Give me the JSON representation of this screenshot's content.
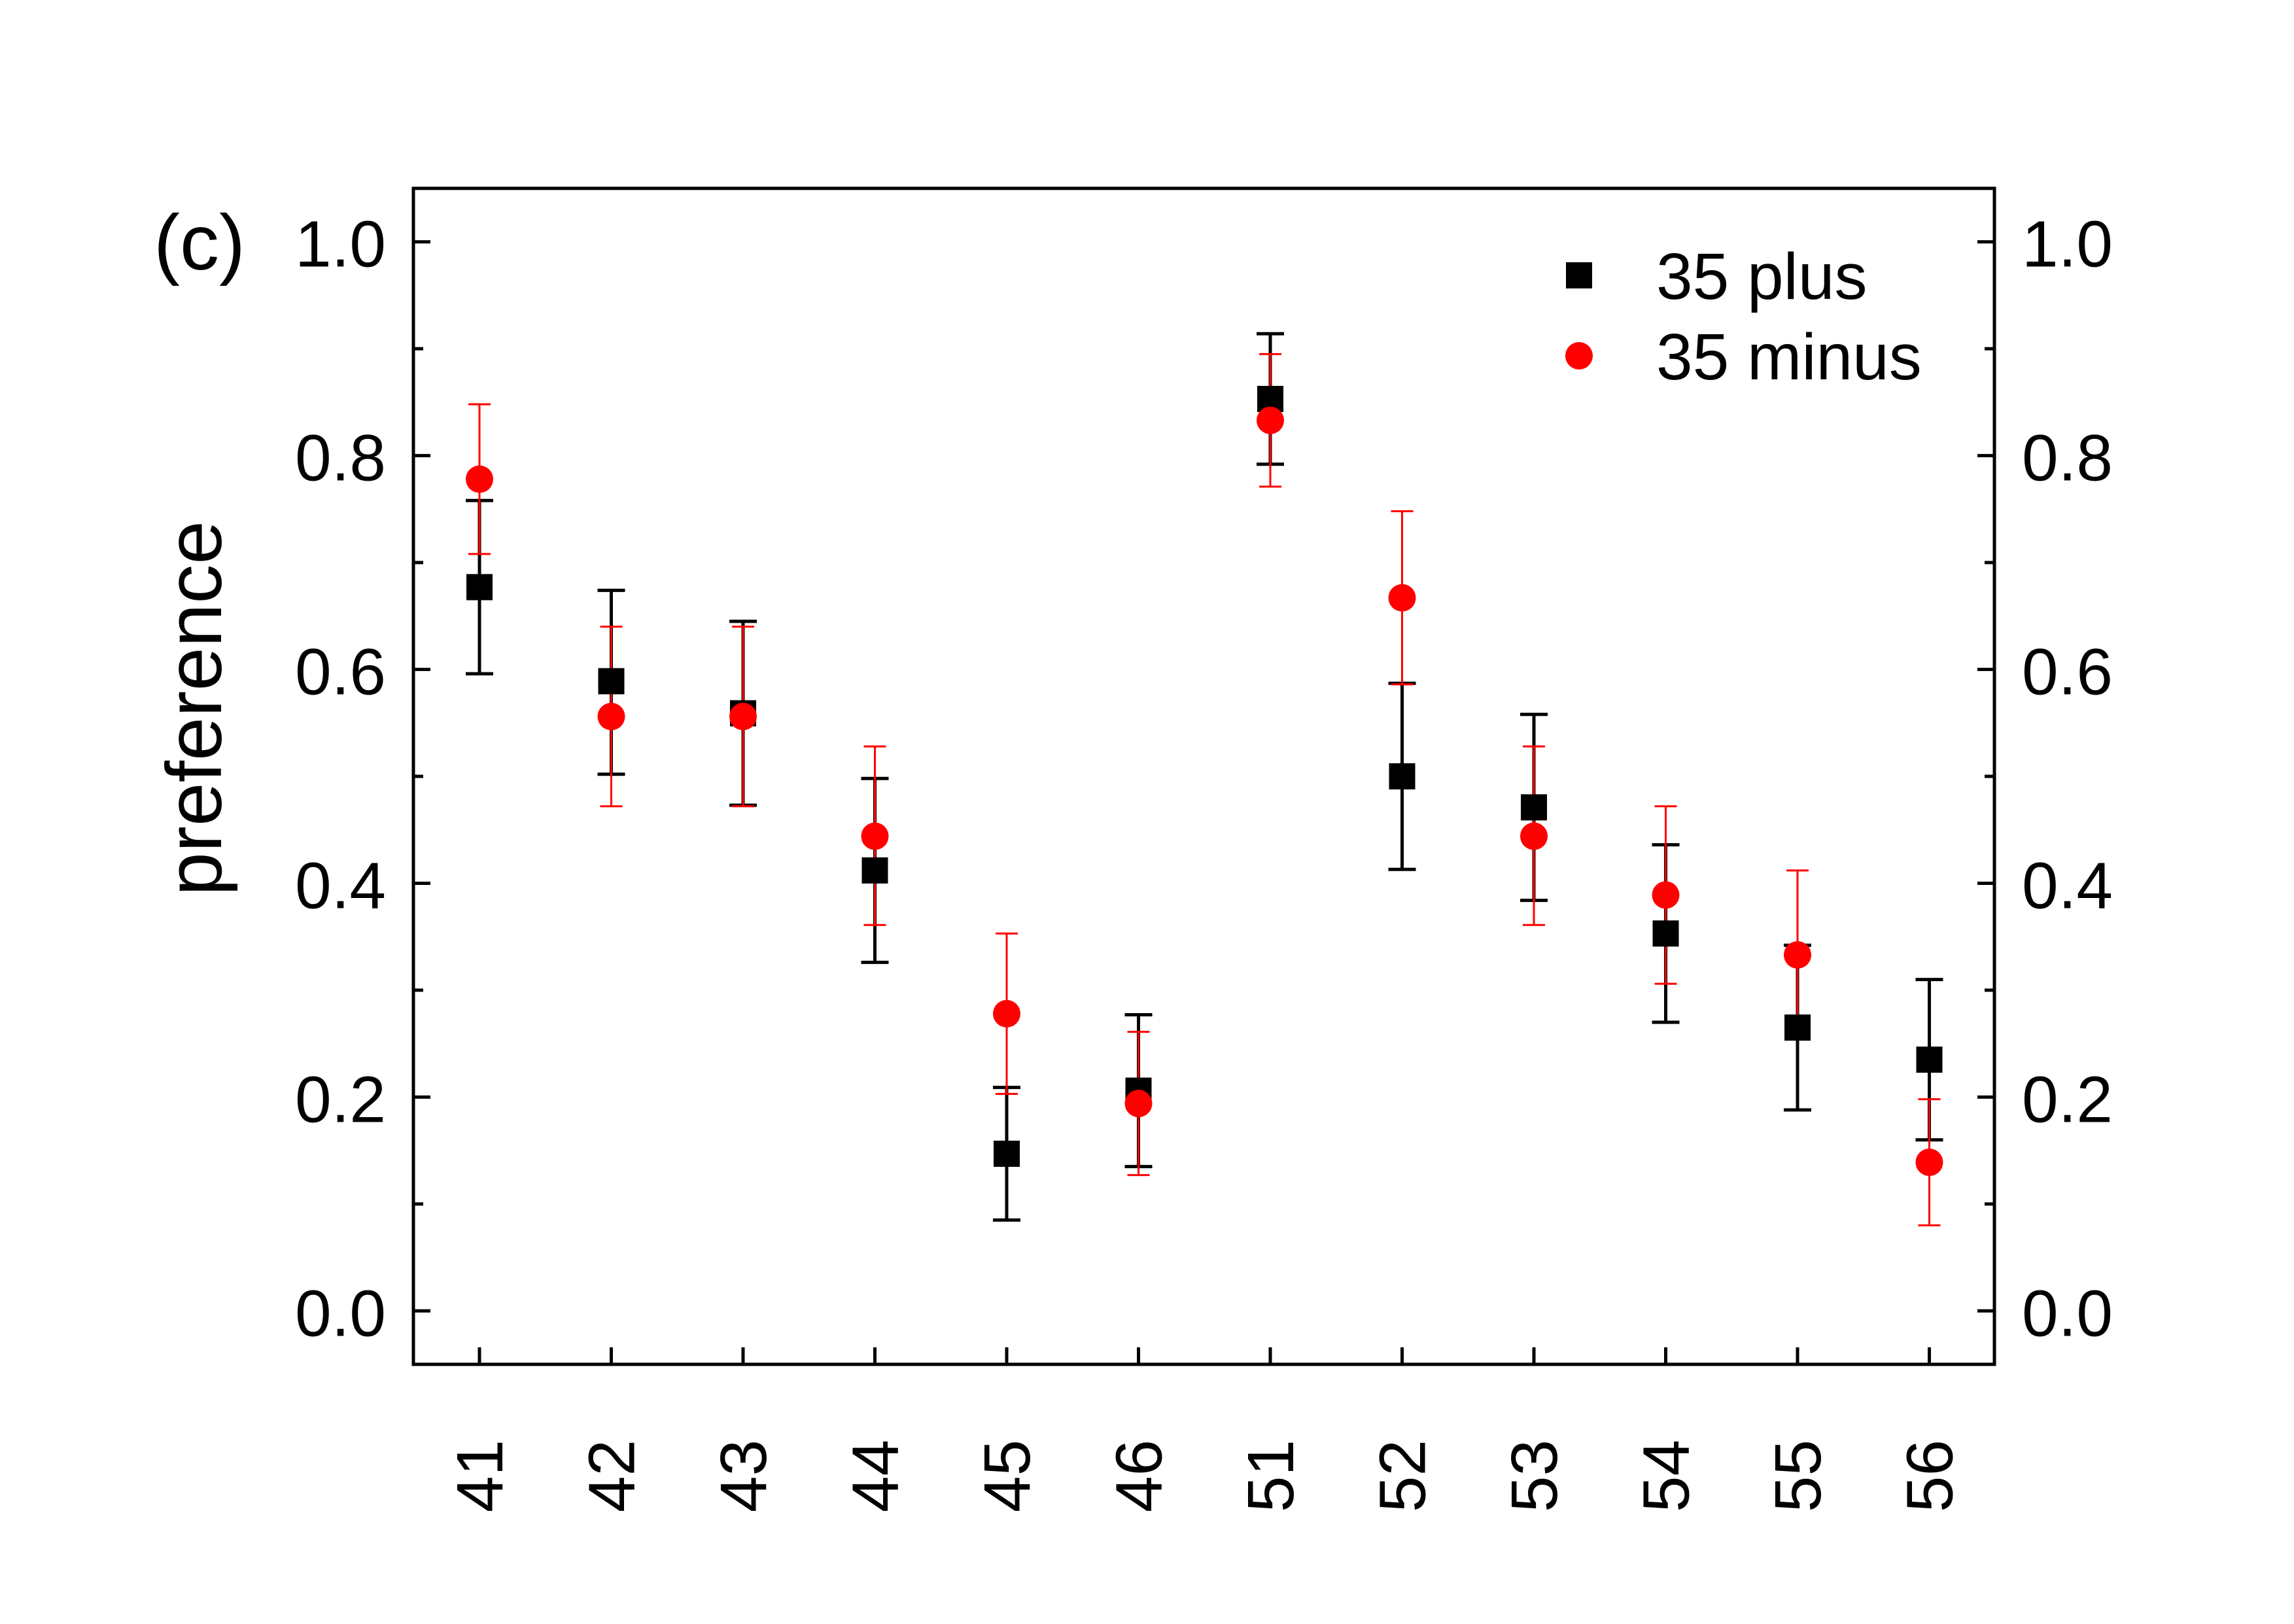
{
  "chart_data": {
    "type": "scatter",
    "panel_label": "(c)",
    "title": "",
    "xlabel": "",
    "ylabel": "preference",
    "categories": [
      "41",
      "42",
      "43",
      "44",
      "45",
      "46",
      "51",
      "52",
      "53",
      "54",
      "55",
      "56"
    ],
    "ylim": [
      -0.05,
      1.05
    ],
    "yticks": [
      "0.0",
      "0.2",
      "0.4",
      "0.6",
      "0.8",
      "1.0"
    ],
    "y_minor_step": 0.1,
    "right_axis_mirrors_left": true,
    "grid": false,
    "legend_position": "top-right",
    "series": [
      {
        "name": "35 plus",
        "marker": "square",
        "color": "#000000",
        "values": [
          0.677,
          0.589,
          0.559,
          0.412,
          0.147,
          0.206,
          0.853,
          0.5,
          0.471,
          0.353,
          0.265,
          0.235
        ],
        "err_low": [
          0.596,
          0.502,
          0.473,
          0.326,
          0.085,
          0.135,
          0.792,
          0.413,
          0.384,
          0.27,
          0.188,
          0.16
        ],
        "err_high": [
          0.758,
          0.674,
          0.645,
          0.498,
          0.209,
          0.277,
          0.914,
          0.587,
          0.558,
          0.436,
          0.342,
          0.31
        ]
      },
      {
        "name": "35 minus",
        "marker": "circle",
        "color": "#ff0000",
        "values": [
          0.778,
          0.556,
          0.556,
          0.444,
          0.278,
          0.194,
          0.833,
          0.667,
          0.444,
          0.389,
          0.333,
          0.139
        ],
        "err_low": [
          0.708,
          0.472,
          0.472,
          0.361,
          0.203,
          0.127,
          0.771,
          0.586,
          0.361,
          0.306,
          0.254,
          0.08
        ],
        "err_high": [
          0.848,
          0.64,
          0.64,
          0.528,
          0.353,
          0.261,
          0.895,
          0.748,
          0.528,
          0.472,
          0.412,
          0.198
        ]
      }
    ]
  }
}
